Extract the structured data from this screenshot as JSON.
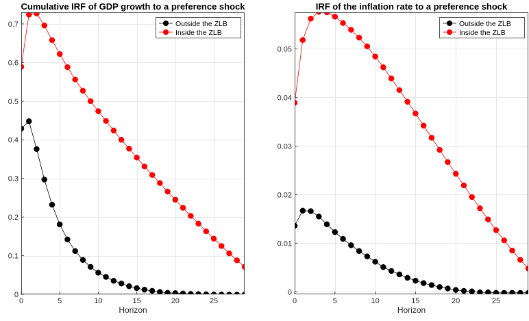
{
  "chart_data": [
    {
      "type": "line",
      "title": "Cumulative IRF of GDP growth to a preference shock",
      "xlabel": "Horizon",
      "ylabel": "",
      "xlim": [
        0,
        29
      ],
      "ylim": [
        0,
        0.73
      ],
      "xticks": [
        0,
        5,
        10,
        15,
        20,
        25
      ],
      "yticks": [
        0,
        0.1,
        0.2,
        0.3,
        0.4,
        0.5,
        0.6,
        0.7
      ],
      "ytick_labels": [
        "0",
        "0.1",
        "0.2",
        "0.3",
        "0.4",
        "0.5",
        "0.6",
        "0.7"
      ],
      "grid": true,
      "legend_position": "top-right",
      "x": [
        0,
        1,
        2,
        3,
        4,
        5,
        6,
        7,
        8,
        9,
        10,
        11,
        12,
        13,
        14,
        15,
        16,
        17,
        18,
        19,
        20,
        21,
        22,
        23,
        24,
        25,
        26,
        27,
        28,
        29
      ],
      "series": [
        {
          "name": "Outside the ZLB",
          "color": "#000000",
          "values": [
            0.429,
            0.448,
            0.376,
            0.297,
            0.232,
            0.181,
            0.142,
            0.112,
            0.089,
            0.071,
            0.056,
            0.045,
            0.035,
            0.028,
            0.021,
            0.016,
            0.012,
            0.009,
            0.006,
            0.004,
            0.003,
            0.002,
            0.001,
            0.0005,
            0.0,
            -0.0005,
            -0.0007,
            -0.0008,
            -0.0008,
            -0.0008
          ]
        },
        {
          "name": "Inside the ZLB",
          "color": "#ff0000",
          "values": [
            0.589,
            0.724,
            0.727,
            0.696,
            0.658,
            0.622,
            0.588,
            0.556,
            0.527,
            0.5,
            0.474,
            0.449,
            0.424,
            0.4,
            0.377,
            0.354,
            0.331,
            0.309,
            0.288,
            0.266,
            0.245,
            0.224,
            0.203,
            0.183,
            0.163,
            0.144,
            0.125,
            0.106,
            0.088,
            0.071
          ]
        }
      ]
    },
    {
      "type": "line",
      "title": "IRF of the inflation rate to a preference shock",
      "xlabel": "Horizon",
      "ylabel": "",
      "xlim": [
        0,
        29
      ],
      "ylim": [
        -0.0005,
        0.0575
      ],
      "xticks": [
        0,
        5,
        10,
        15,
        20,
        25
      ],
      "yticks": [
        0,
        0.01,
        0.02,
        0.03,
        0.04,
        0.05
      ],
      "ytick_labels": [
        "0",
        "0.01",
        "0.02",
        "0.03",
        "0.04",
        "0.05"
      ],
      "grid": true,
      "legend_position": "top-right",
      "x": [
        0,
        1,
        2,
        3,
        4,
        5,
        6,
        7,
        8,
        9,
        10,
        11,
        12,
        13,
        14,
        15,
        16,
        17,
        18,
        19,
        20,
        21,
        22,
        23,
        24,
        25,
        26,
        27,
        28,
        29
      ],
      "series": [
        {
          "name": "Outside the ZLB",
          "color": "#000000",
          "values": [
            0.0136,
            0.0167,
            0.0166,
            0.0155,
            0.0139,
            0.0123,
            0.0109,
            0.0096,
            0.0084,
            0.0073,
            0.0062,
            0.0051,
            0.0043,
            0.0036,
            0.0029,
            0.0023,
            0.0018,
            0.0014,
            0.001,
            0.0007,
            0.0004,
            0.0002,
            0.0001,
            -0.0001,
            -0.0001,
            -0.0002,
            -0.0002,
            -0.0002,
            -0.0002,
            -0.0002
          ]
        },
        {
          "name": "Inside the ZLB",
          "color": "#ff0000",
          "values": [
            0.0389,
            0.0518,
            0.0562,
            0.0576,
            0.0575,
            0.0566,
            0.0553,
            0.0539,
            0.0523,
            0.0505,
            0.0484,
            0.0462,
            0.0439,
            0.0415,
            0.0391,
            0.0367,
            0.0342,
            0.0317,
            0.0292,
            0.0267,
            0.0243,
            0.0219,
            0.0195,
            0.0172,
            0.0149,
            0.0127,
            0.0106,
            0.0085,
            0.0066,
            0.0048
          ]
        }
      ]
    }
  ]
}
